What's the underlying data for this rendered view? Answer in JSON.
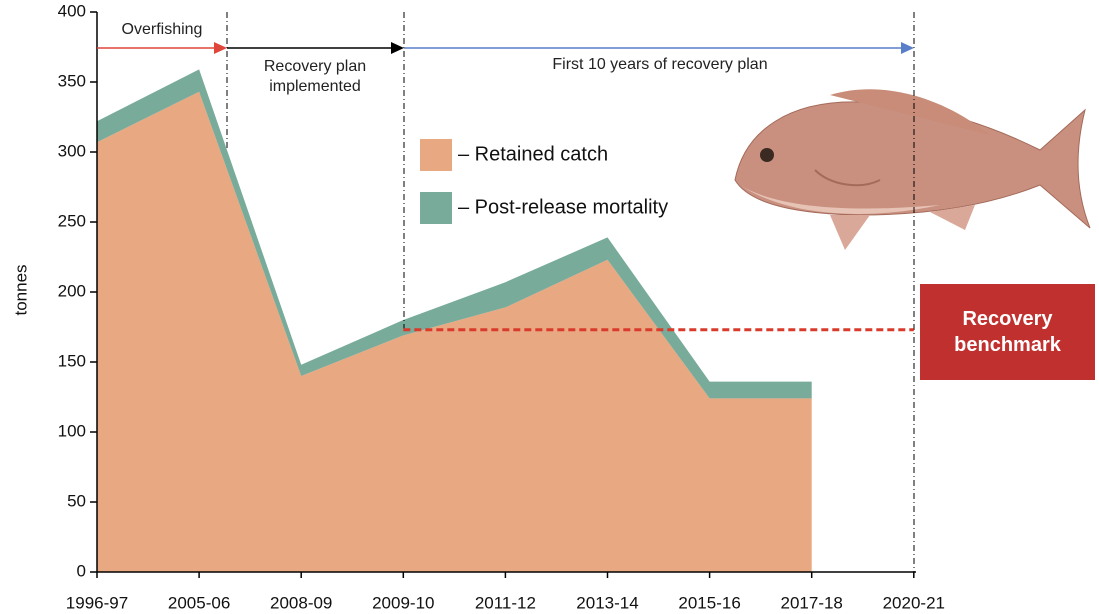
{
  "chart_data": {
    "type": "stacked-area",
    "y_label": "tonnes",
    "categories": [
      "1996-97",
      "2005-06",
      "2008-09",
      "2009-10",
      "2011-12",
      "2013-14",
      "2015-16",
      "2017-18",
      "2020-21"
    ],
    "series": [
      {
        "name": "– Retained catch",
        "color": "#e8a882",
        "values": [
          307,
          343,
          140,
          169,
          189,
          223,
          124,
          124,
          null
        ]
      },
      {
        "name": "– Post-release mortality",
        "color": "#78ab99",
        "values": [
          15,
          16,
          8,
          11,
          18,
          16,
          12,
          12,
          null
        ]
      }
    ],
    "ylim": [
      0,
      400
    ],
    "yticks": [
      0,
      50,
      100,
      150,
      200,
      250,
      300,
      350,
      400
    ],
    "phases": [
      "Overfishing",
      "Recovery plan implemented",
      "First 10 years of recovery plan"
    ],
    "benchmark": {
      "label": "Recovery benchmark",
      "value": 173,
      "color": "#d93a2b"
    }
  }
}
